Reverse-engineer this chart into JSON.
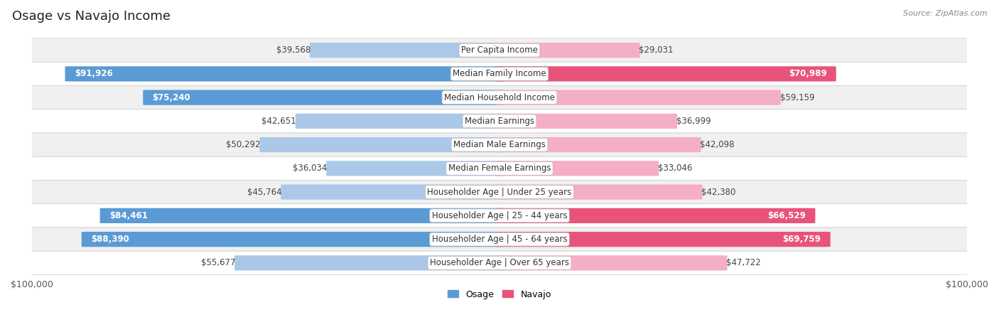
{
  "title": "Osage vs Navajo Income",
  "source": "Source: ZipAtlas.com",
  "categories": [
    "Per Capita Income",
    "Median Family Income",
    "Median Household Income",
    "Median Earnings",
    "Median Male Earnings",
    "Median Female Earnings",
    "Householder Age | Under 25 years",
    "Householder Age | 25 - 44 years",
    "Householder Age | 45 - 64 years",
    "Householder Age | Over 65 years"
  ],
  "osage_values": [
    39568,
    91926,
    75240,
    42651,
    50292,
    36034,
    45764,
    84461,
    88390,
    55677
  ],
  "navajo_values": [
    29031,
    70989,
    59159,
    36999,
    42098,
    33046,
    42380,
    66529,
    69759,
    47722
  ],
  "osage_labels": [
    "$39,568",
    "$91,926",
    "$75,240",
    "$42,651",
    "$50,292",
    "$36,034",
    "$45,764",
    "$84,461",
    "$88,390",
    "$55,677"
  ],
  "navajo_labels": [
    "$29,031",
    "$70,989",
    "$59,159",
    "$36,999",
    "$42,098",
    "$33,046",
    "$42,380",
    "$66,529",
    "$69,759",
    "$47,722"
  ],
  "osage_color_light": "#abc8e8",
  "osage_color_dark": "#5b9bd5",
  "navajo_color_light": "#f4aec5",
  "navajo_color_dark": "#e8537a",
  "dark_threshold_osage": 65000,
  "dark_threshold_navajo": 65000,
  "max_value": 100000,
  "bar_height": 0.62,
  "background_color": "#ffffff",
  "row_bg_light": "#f0f0f0",
  "row_bg_white": "#ffffff",
  "title_fontsize": 13,
  "label_fontsize": 8.5,
  "cat_fontsize": 8.5,
  "axis_fontsize": 9,
  "legend_fontsize": 9
}
